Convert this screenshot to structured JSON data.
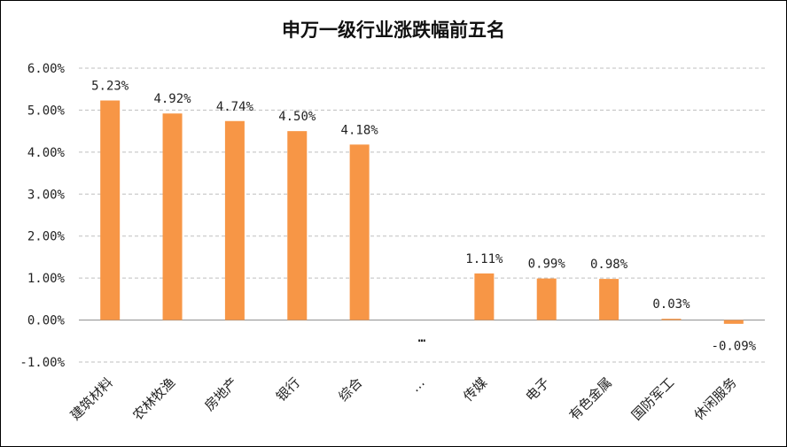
{
  "chart_data": {
    "type": "bar",
    "title": "申万一级行业涨跌幅前五名",
    "xlabel": "",
    "ylabel": "",
    "ylim": [
      -1,
      6
    ],
    "ytick_step": 1,
    "ytick_labels": [
      "-1.00%",
      "0.00%",
      "1.00%",
      "2.00%",
      "3.00%",
      "4.00%",
      "5.00%",
      "6.00%"
    ],
    "grid": true,
    "legend": "none",
    "bar_color": "#F79646",
    "categories": [
      "建筑材料",
      "农林牧渔",
      "房地产",
      "银行",
      "综合",
      "…",
      "传媒",
      "电子",
      "有色金属",
      "国防军工",
      "休闲服务"
    ],
    "values": [
      5.23,
      4.92,
      4.74,
      4.5,
      4.18,
      null,
      1.11,
      0.99,
      0.98,
      0.03,
      -0.09
    ],
    "data_labels": [
      "5.23%",
      "4.92%",
      "4.74%",
      "4.50%",
      "4.18%",
      "…",
      "1.11%",
      "0.99%",
      "0.98%",
      "0.03%",
      "-0.09%"
    ]
  }
}
